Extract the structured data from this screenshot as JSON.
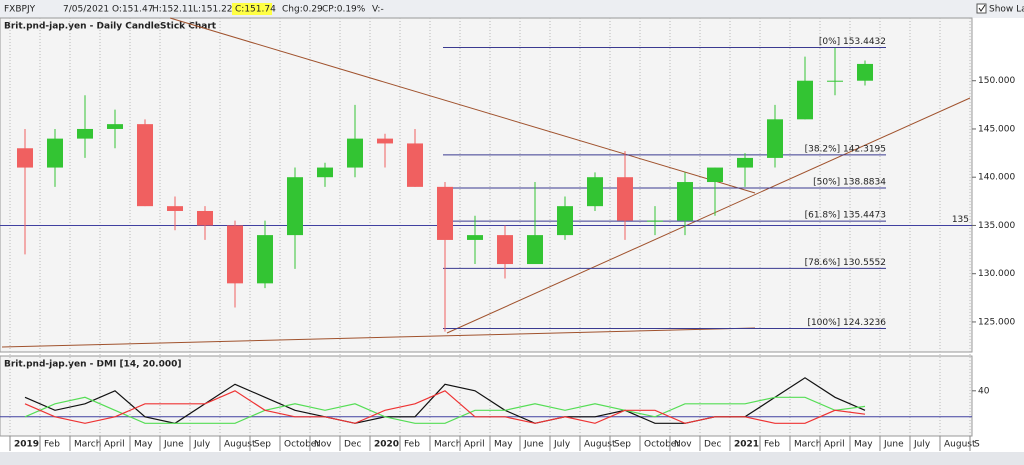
{
  "toolbar": {
    "symbol": "FXBPJY",
    "date": "7/05/2021",
    "open": "O:151.47",
    "high": "H:152.11",
    "low": "L:151.22",
    "close": "C:151.74",
    "change": "Chg:0.29",
    "change_pct": "CP:0.19%",
    "volume": "V:-",
    "show_last": "Show Last"
  },
  "chart_data": [
    {
      "type": "candlestick",
      "title": "Brit.pnd-jap.yen - Daily CandleStick Chart",
      "categories": [
        "2019",
        "Feb",
        "March",
        "April",
        "May",
        "June",
        "July",
        "August",
        "Sep",
        "October",
        "Nov",
        "Dec",
        "2020",
        "Feb",
        "March",
        "April",
        "May",
        "June",
        "July",
        "August",
        "Sep",
        "October",
        "Nov",
        "Dec",
        "2021",
        "Feb",
        "March",
        "April",
        "May",
        "June",
        "July",
        "August",
        "S"
      ],
      "open": [
        143,
        141,
        144,
        145,
        145.5,
        137,
        136.5,
        135,
        129,
        134,
        140,
        141,
        144,
        143.5,
        139,
        133.5,
        134,
        131,
        134,
        137,
        140,
        135.5,
        135.5,
        139.5,
        141,
        142,
        146,
        150,
        150,
        null,
        null,
        null,
        null
      ],
      "high": [
        145,
        145,
        148.5,
        147,
        146,
        138,
        137,
        135.5,
        135.5,
        141,
        141.5,
        147.5,
        144.5,
        145,
        139.5,
        136,
        135,
        139.5,
        138,
        140.5,
        142.7,
        137,
        140.5,
        141,
        142.5,
        147.5,
        152.5,
        153.4,
        152.1,
        null,
        null,
        null,
        null
      ],
      "low": [
        132,
        139,
        142,
        143,
        137,
        134.5,
        133.5,
        126.5,
        128.5,
        130.5,
        139,
        140,
        141,
        139,
        124,
        131,
        129.5,
        131,
        133.5,
        136.5,
        133.5,
        134,
        134,
        136,
        139,
        141,
        146,
        148.5,
        149.5,
        null,
        null,
        null,
        null
      ],
      "close": [
        141,
        144,
        145,
        145.5,
        137,
        136.5,
        135,
        129,
        134,
        140,
        141,
        144,
        143.5,
        139,
        133.5,
        134,
        131,
        134,
        137,
        140,
        135.5,
        135.5,
        139.5,
        141,
        142,
        146,
        150,
        150,
        151.74,
        null,
        null,
        null,
        null
      ],
      "up_color": "#33c433",
      "down_color": "#f06060",
      "ylim": [
        122.3,
        156.5
      ],
      "yticks": [
        {
          "value": 125,
          "label": "125.000"
        },
        {
          "value": 130,
          "label": "130.000"
        },
        {
          "value": 135,
          "label": "135.000"
        },
        {
          "value": 140,
          "label": "140.000"
        },
        {
          "value": 145,
          "label": "145.000"
        },
        {
          "value": 150,
          "label": "150.000"
        }
      ],
      "levels": [
        {
          "value": 153.4432,
          "label": "[0%] 153.4432"
        },
        {
          "value": 142.3195,
          "label": "[38.2%] 142.3195"
        },
        {
          "value": 138.8834,
          "label": "[50%] 138.8834"
        },
        {
          "value": 135.4473,
          "label": "[61.8%] 135.4473"
        },
        {
          "value": 130.5552,
          "label": "[78.6%] 130.5552"
        },
        {
          "value": 124.3236,
          "label": "[100%] 124.3236"
        }
      ],
      "hline": 135
    },
    {
      "type": "line",
      "title": "Brit.pnd-jap.yen - DMI [14, 20.000]",
      "series": [
        {
          "color": "#111111",
          "values": [
            35,
            25,
            30,
            40,
            20,
            15,
            30,
            45,
            35,
            25,
            20,
            15,
            20,
            20,
            45,
            40,
            25,
            15,
            20,
            20,
            25,
            15,
            15,
            20,
            20,
            35,
            50,
            35,
            25,
            null,
            null,
            null,
            null
          ]
        },
        {
          "color": "#55dd55",
          "values": [
            20,
            30,
            35,
            25,
            15,
            15,
            15,
            15,
            25,
            30,
            25,
            30,
            20,
            15,
            15,
            25,
            25,
            30,
            25,
            30,
            25,
            20,
            30,
            30,
            30,
            35,
            35,
            25,
            28,
            null,
            null,
            null,
            null
          ]
        },
        {
          "color": "#ee3333",
          "values": [
            30,
            20,
            15,
            20,
            30,
            30,
            30,
            40,
            25,
            20,
            20,
            15,
            25,
            30,
            40,
            20,
            20,
            15,
            20,
            15,
            25,
            25,
            15,
            20,
            20,
            15,
            15,
            25,
            22,
            null,
            null,
            null,
            null
          ]
        }
      ],
      "ylim": [
        6,
        66
      ],
      "yticks": [
        40
      ],
      "hline": 20
    }
  ]
}
